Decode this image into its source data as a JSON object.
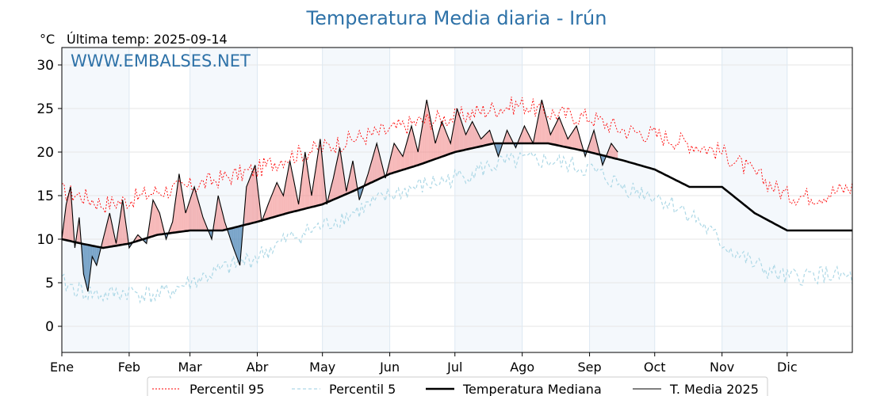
{
  "chart_data": {
    "type": "line",
    "title": "Temperatura Media diaria - Irún",
    "subtitle": "Última temp: 2025-09-14",
    "unit_label": "°C",
    "watermark": "WWW.EMBALSES.NET",
    "xlabel": "",
    "ylabel": "",
    "x_unit": "day_of_year",
    "xlim": [
      1,
      365
    ],
    "ylim": [
      -3,
      32
    ],
    "y_ticks": [
      0,
      5,
      10,
      15,
      20,
      25,
      30
    ],
    "months": [
      {
        "label": "Ene",
        "start": 1
      },
      {
        "label": "Feb",
        "start": 32
      },
      {
        "label": "Mar",
        "start": 60
      },
      {
        "label": "Abr",
        "start": 91
      },
      {
        "label": "May",
        "start": 121
      },
      {
        "label": "Jun",
        "start": 152
      },
      {
        "label": "Jul",
        "start": 182
      },
      {
        "label": "Ago",
        "start": 213
      },
      {
        "label": "Sep",
        "start": 244
      },
      {
        "label": "Oct",
        "start": 274
      },
      {
        "label": "Nov",
        "start": 305
      },
      {
        "label": "Dic",
        "start": 335
      }
    ],
    "series": [
      {
        "name": "Percentil 95",
        "style": "dotted",
        "color": "#ff0000",
        "keypoints": [
          [
            1,
            15.5
          ],
          [
            10,
            15
          ],
          [
            20,
            14
          ],
          [
            32,
            14.5
          ],
          [
            45,
            15.5
          ],
          [
            60,
            16
          ],
          [
            75,
            17
          ],
          [
            91,
            18
          ],
          [
            105,
            19.5
          ],
          [
            121,
            20.5
          ],
          [
            135,
            21.5
          ],
          [
            152,
            22.5
          ],
          [
            165,
            23.5
          ],
          [
            182,
            24
          ],
          [
            200,
            25
          ],
          [
            213,
            25.5
          ],
          [
            225,
            24.5
          ],
          [
            244,
            24
          ],
          [
            260,
            22.5
          ],
          [
            274,
            22
          ],
          [
            290,
            21
          ],
          [
            305,
            20
          ],
          [
            320,
            17.5
          ],
          [
            335,
            15
          ],
          [
            350,
            15
          ],
          [
            365,
            16
          ]
        ]
      },
      {
        "name": "Percentil 5",
        "style": "dashed",
        "color": "#add8e6",
        "keypoints": [
          [
            1,
            5
          ],
          [
            10,
            4
          ],
          [
            20,
            3.5
          ],
          [
            32,
            4
          ],
          [
            45,
            3.5
          ],
          [
            60,
            5
          ],
          [
            75,
            6.5
          ],
          [
            91,
            8
          ],
          [
            105,
            10
          ],
          [
            121,
            11.5
          ],
          [
            135,
            13
          ],
          [
            152,
            15
          ],
          [
            165,
            16
          ],
          [
            182,
            17
          ],
          [
            200,
            18.5
          ],
          [
            213,
            19
          ],
          [
            225,
            19
          ],
          [
            244,
            18
          ],
          [
            260,
            16
          ],
          [
            274,
            15
          ],
          [
            290,
            13
          ],
          [
            305,
            9.5
          ],
          [
            320,
            7
          ],
          [
            335,
            5.5
          ],
          [
            350,
            6
          ],
          [
            365,
            5.5
          ]
        ]
      },
      {
        "name": "Temperatura Mediana",
        "style": "solid-thick",
        "color": "#000000",
        "keypoints": [
          [
            1,
            10
          ],
          [
            10,
            9.5
          ],
          [
            20,
            9
          ],
          [
            32,
            9.5
          ],
          [
            45,
            10.5
          ],
          [
            60,
            11
          ],
          [
            75,
            11
          ],
          [
            91,
            12
          ],
          [
            105,
            13
          ],
          [
            121,
            14
          ],
          [
            135,
            15.5
          ],
          [
            152,
            17.5
          ],
          [
            165,
            18.5
          ],
          [
            182,
            20
          ],
          [
            200,
            21
          ],
          [
            213,
            21
          ],
          [
            225,
            21
          ],
          [
            244,
            20
          ],
          [
            260,
            19
          ],
          [
            274,
            18
          ],
          [
            290,
            16
          ],
          [
            305,
            16
          ],
          [
            320,
            13
          ],
          [
            335,
            11
          ],
          [
            350,
            11
          ],
          [
            365,
            11
          ]
        ]
      },
      {
        "name": "T. Media 2025",
        "style": "solid-thin",
        "color": "#000000",
        "last_day": 257,
        "keypoints": [
          [
            1,
            10
          ],
          [
            3,
            14
          ],
          [
            5,
            16
          ],
          [
            7,
            9
          ],
          [
            9,
            12.5
          ],
          [
            11,
            6
          ],
          [
            13,
            4
          ],
          [
            15,
            8
          ],
          [
            17,
            7
          ],
          [
            20,
            10
          ],
          [
            23,
            13
          ],
          [
            26,
            9.5
          ],
          [
            29,
            14.5
          ],
          [
            32,
            9
          ],
          [
            36,
            10.5
          ],
          [
            40,
            9.5
          ],
          [
            43,
            14.5
          ],
          [
            46,
            13
          ],
          [
            49,
            10
          ],
          [
            52,
            12
          ],
          [
            55,
            17.5
          ],
          [
            58,
            13
          ],
          [
            62,
            16
          ],
          [
            66,
            12.5
          ],
          [
            70,
            10
          ],
          [
            73,
            15
          ],
          [
            76,
            12
          ],
          [
            80,
            9
          ],
          [
            83,
            7
          ],
          [
            86,
            16
          ],
          [
            90,
            18.5
          ],
          [
            93,
            12
          ],
          [
            96,
            14
          ],
          [
            100,
            16.5
          ],
          [
            103,
            15
          ],
          [
            106,
            19
          ],
          [
            110,
            14
          ],
          [
            113,
            20
          ],
          [
            116,
            15
          ],
          [
            120,
            21.5
          ],
          [
            123,
            14
          ],
          [
            126,
            17
          ],
          [
            129,
            20.5
          ],
          [
            132,
            15.5
          ],
          [
            135,
            19
          ],
          [
            138,
            14.5
          ],
          [
            142,
            17.5
          ],
          [
            146,
            21
          ],
          [
            150,
            17
          ],
          [
            154,
            21
          ],
          [
            158,
            19.5
          ],
          [
            162,
            23
          ],
          [
            165,
            20
          ],
          [
            169,
            26
          ],
          [
            173,
            21
          ],
          [
            176,
            23.5
          ],
          [
            180,
            21
          ],
          [
            183,
            25
          ],
          [
            187,
            22
          ],
          [
            190,
            23.5
          ],
          [
            194,
            21.5
          ],
          [
            198,
            22.5
          ],
          [
            202,
            19.5
          ],
          [
            206,
            22.5
          ],
          [
            210,
            20.5
          ],
          [
            214,
            23
          ],
          [
            218,
            21
          ],
          [
            222,
            26
          ],
          [
            226,
            22
          ],
          [
            230,
            24
          ],
          [
            234,
            21.5
          ],
          [
            238,
            23
          ],
          [
            242,
            19.5
          ],
          [
            246,
            22.5
          ],
          [
            250,
            18.5
          ],
          [
            254,
            21
          ],
          [
            257,
            20
          ]
        ]
      }
    ],
    "anomaly_fill": {
      "warm_color": "#f08080",
      "cold_color": "#4682b4"
    },
    "vertical_bands_alternating": true,
    "grid": true,
    "legend_position": "bottom"
  }
}
